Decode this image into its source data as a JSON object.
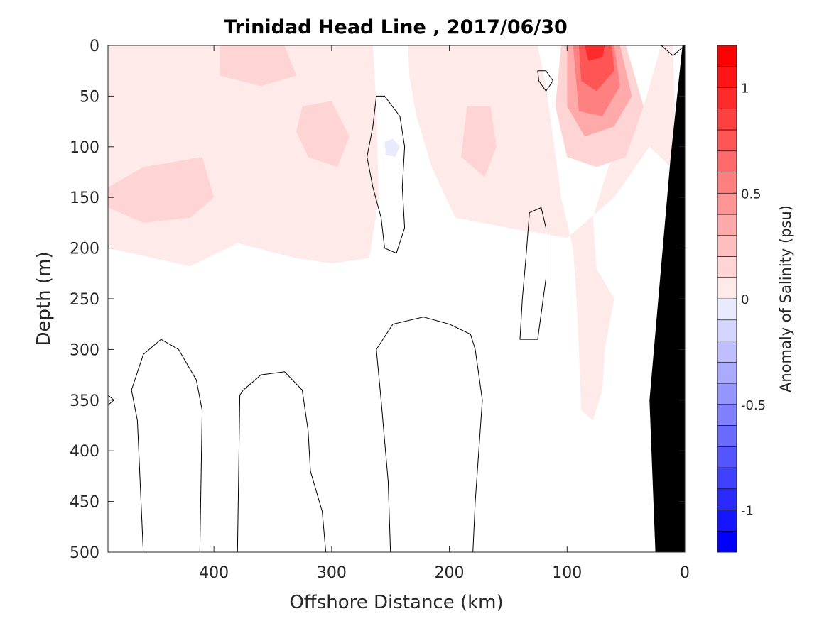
{
  "chart_data": {
    "type": "heatmap",
    "title": "Trinidad Head Line , 2017/06/30",
    "xlabel": "Offshore Distance (km)",
    "ylabel": "Depth (m)",
    "colorbar_label": "Anomaly of Salinity (psu)",
    "xlim": [
      490,
      0
    ],
    "ylim": [
      0,
      500
    ],
    "x_reversed": true,
    "y_reversed": true,
    "x_ticks": [
      {
        "value": 400,
        "label": "400"
      },
      {
        "value": 300,
        "label": "300"
      },
      {
        "value": 200,
        "label": "200"
      },
      {
        "value": 100,
        "label": "100"
      },
      {
        "value": 0,
        "label": "0"
      }
    ],
    "y_ticks": [
      {
        "value": 0,
        "label": "0"
      },
      {
        "value": 50,
        "label": "50"
      },
      {
        "value": 100,
        "label": "100"
      },
      {
        "value": 150,
        "label": "150"
      },
      {
        "value": 200,
        "label": "200"
      },
      {
        "value": 250,
        "label": "250"
      },
      {
        "value": 300,
        "label": "300"
      },
      {
        "value": 350,
        "label": "350"
      },
      {
        "value": 400,
        "label": "400"
      },
      {
        "value": 450,
        "label": "450"
      },
      {
        "value": 500,
        "label": "500"
      }
    ],
    "colorbar": {
      "range": [
        -1.2,
        1.2
      ],
      "step": 0.1,
      "ticks": [
        {
          "value": 1,
          "label": "1"
        },
        {
          "value": 0.5,
          "label": "0.5"
        },
        {
          "value": 0,
          "label": "0"
        },
        {
          "value": -0.5,
          "label": "-0.5"
        },
        {
          "value": -1,
          "label": "-1"
        }
      ]
    },
    "anomaly_regions": [
      {
        "level": 0.1,
        "points": [
          [
            490,
            0
          ],
          [
            265,
            0
          ],
          [
            262,
            60
          ],
          [
            260,
            150
          ],
          [
            268,
            210
          ],
          [
            300,
            215
          ],
          [
            330,
            210
          ],
          [
            380,
            195
          ],
          [
            420,
            218
          ],
          [
            490,
            200
          ]
        ]
      },
      {
        "level": 0.1,
        "points": [
          [
            235,
            0
          ],
          [
            125,
            0
          ],
          [
            118,
            40
          ],
          [
            105,
            150
          ],
          [
            95,
            200
          ],
          [
            92,
            250
          ],
          [
            90,
            300
          ],
          [
            88,
            360
          ],
          [
            78,
            370
          ],
          [
            70,
            340
          ],
          [
            68,
            300
          ],
          [
            60,
            250
          ],
          [
            75,
            220
          ],
          [
            78,
            170
          ],
          [
            65,
            120
          ],
          [
            35,
            60
          ],
          [
            20,
            0
          ],
          [
            10,
            0
          ],
          [
            8,
            80
          ],
          [
            12,
            120
          ],
          [
            30,
            100
          ],
          [
            60,
            150
          ],
          [
            100,
            190
          ],
          [
            150,
            180
          ],
          [
            195,
            170
          ],
          [
            215,
            120
          ],
          [
            228,
            70
          ],
          [
            234,
            30
          ]
        ]
      },
      {
        "level": 0.2,
        "points": [
          [
            490,
            140
          ],
          [
            460,
            120
          ],
          [
            410,
            110
          ],
          [
            400,
            150
          ],
          [
            420,
            170
          ],
          [
            460,
            175
          ],
          [
            490,
            160
          ]
        ]
      },
      {
        "level": 0.2,
        "points": [
          [
            325,
            60
          ],
          [
            300,
            55
          ],
          [
            285,
            90
          ],
          [
            295,
            120
          ],
          [
            320,
            110
          ],
          [
            330,
            85
          ]
        ]
      },
      {
        "level": 0.2,
        "points": [
          [
            185,
            60
          ],
          [
            165,
            60
          ],
          [
            160,
            100
          ],
          [
            170,
            130
          ],
          [
            190,
            110
          ]
        ]
      },
      {
        "level": 0.2,
        "points": [
          [
            395,
            0
          ],
          [
            340,
            0
          ],
          [
            330,
            30
          ],
          [
            360,
            40
          ],
          [
            395,
            30
          ]
        ]
      },
      {
        "level": 0.2,
        "points": [
          [
            105,
            0
          ],
          [
            50,
            0
          ],
          [
            35,
            60
          ],
          [
            50,
            110
          ],
          [
            75,
            120
          ],
          [
            100,
            110
          ],
          [
            110,
            60
          ]
        ]
      },
      {
        "level": 0.4,
        "points": [
          [
            100,
            0
          ],
          [
            55,
            0
          ],
          [
            45,
            50
          ],
          [
            60,
            80
          ],
          [
            85,
            90
          ],
          [
            100,
            60
          ]
        ]
      },
      {
        "level": 0.6,
        "points": [
          [
            95,
            0
          ],
          [
            60,
            0
          ],
          [
            55,
            40
          ],
          [
            70,
            70
          ],
          [
            90,
            65
          ]
        ]
      },
      {
        "level": 0.8,
        "points": [
          [
            90,
            0
          ],
          [
            62,
            0
          ],
          [
            60,
            25
          ],
          [
            75,
            45
          ],
          [
            88,
            35
          ]
        ]
      },
      {
        "level": 1.0,
        "points": [
          [
            85,
            0
          ],
          [
            68,
            0
          ],
          [
            70,
            12
          ],
          [
            82,
            15
          ]
        ]
      },
      {
        "level": -0.1,
        "points": [
          [
            255,
            95
          ],
          [
            248,
            92
          ],
          [
            242,
            100
          ],
          [
            246,
            110
          ],
          [
            254,
            108
          ]
        ]
      }
    ],
    "zero_contours": [
      [
        [
          265,
          80
        ],
        [
          262,
          50
        ],
        [
          255,
          50
        ],
        [
          242,
          70
        ],
        [
          238,
          100
        ],
        [
          240,
          140
        ],
        [
          238,
          180
        ],
        [
          245,
          205
        ],
        [
          255,
          200
        ],
        [
          258,
          170
        ],
        [
          265,
          140
        ],
        [
          270,
          110
        ]
      ],
      [
        [
          460,
          500
        ],
        [
          465,
          370
        ],
        [
          470,
          340
        ],
        [
          460,
          305
        ],
        [
          445,
          290
        ],
        [
          430,
          300
        ],
        [
          415,
          330
        ],
        [
          410,
          360
        ],
        [
          412,
          500
        ]
      ],
      [
        [
          380,
          500
        ],
        [
          378,
          345
        ],
        [
          375,
          340
        ],
        [
          360,
          325
        ],
        [
          340,
          322
        ],
        [
          325,
          340
        ],
        [
          320,
          380
        ],
        [
          318,
          420
        ],
        [
          308,
          460
        ],
        [
          305,
          500
        ]
      ],
      [
        [
          250,
          500
        ],
        [
          252,
          430
        ],
        [
          255,
          390
        ],
        [
          258,
          350
        ],
        [
          262,
          300
        ],
        [
          248,
          275
        ],
        [
          222,
          268
        ],
        [
          200,
          275
        ],
        [
          182,
          285
        ],
        [
          178,
          300
        ],
        [
          172,
          350
        ],
        [
          175,
          400
        ],
        [
          178,
          450
        ],
        [
          180,
          500
        ]
      ],
      [
        [
          140,
          290
        ],
        [
          125,
          290
        ],
        [
          118,
          230
        ],
        [
          118,
          180
        ],
        [
          122,
          160
        ],
        [
          132,
          165
        ],
        [
          135,
          210
        ],
        [
          138,
          250
        ]
      ],
      [
        [
          125,
          25
        ],
        [
          118,
          25
        ],
        [
          112,
          35
        ],
        [
          118,
          45
        ],
        [
          124,
          35
        ]
      ],
      [
        [
          20,
          0
        ],
        [
          10,
          10
        ],
        [
          0,
          0
        ]
      ],
      [
        [
          490,
          345
        ],
        [
          485,
          350
        ],
        [
          490,
          355
        ]
      ]
    ],
    "bathymetry": [
      [
        0,
        0
      ],
      [
        0,
        500
      ],
      [
        25,
        500
      ],
      [
        30,
        350
      ],
      [
        12,
        110
      ],
      [
        2,
        0
      ]
    ]
  }
}
